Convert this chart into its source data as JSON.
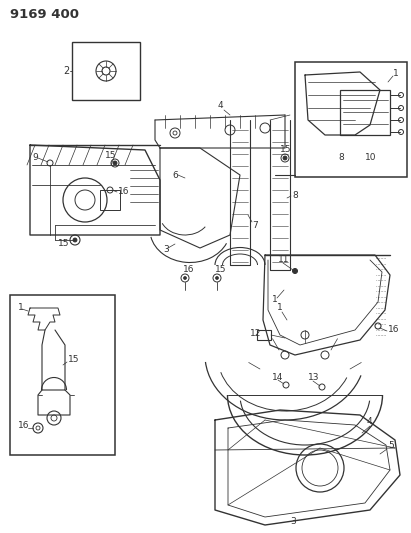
{
  "title": "9169 400",
  "bg_color": "#ffffff",
  "line_color": "#333333",
  "fig_width": 4.11,
  "fig_height": 5.33,
  "dpi": 100
}
